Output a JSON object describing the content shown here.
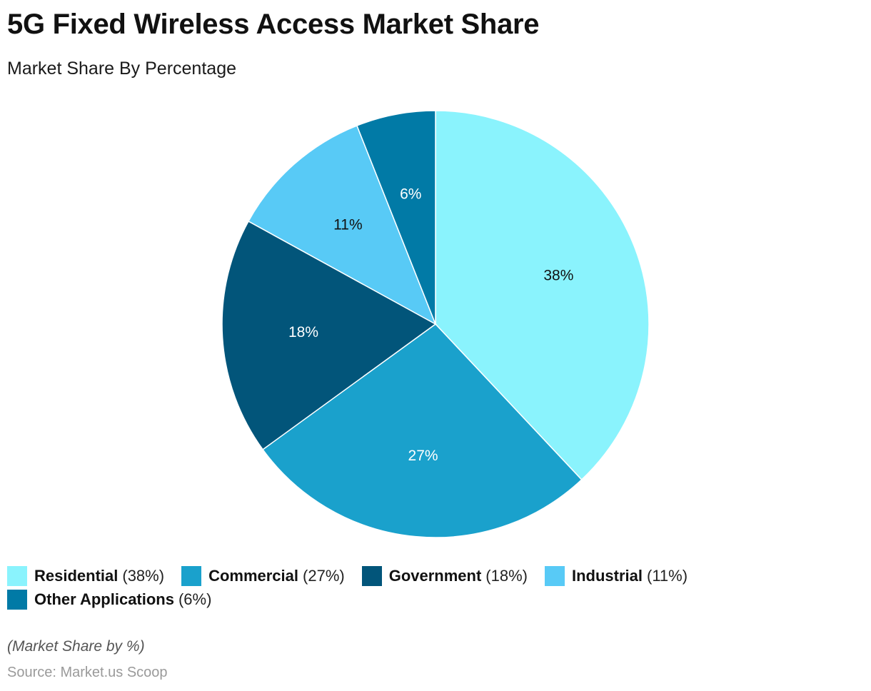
{
  "title": "5G Fixed Wireless Access Market Share",
  "subtitle": "Market Share By Percentage",
  "chart_data": {
    "type": "pie",
    "title": "5G Fixed Wireless Access Market Share",
    "subtitle": "Market Share By Percentage",
    "unit": "%",
    "start": "12 o'clock, clockwise",
    "legend_position": "bottom",
    "slices": [
      {
        "name": "Residential",
        "value": 38,
        "label": "38%",
        "legend_value": "(38%)",
        "color": "#8af3fd",
        "label_color": "#111111"
      },
      {
        "name": "Commercial",
        "value": 27,
        "label": "27%",
        "legend_value": "(27%)",
        "color": "#1aa1cc",
        "label_color": "#ffffff"
      },
      {
        "name": "Government",
        "value": 18,
        "label": "18%",
        "legend_value": "(18%)",
        "color": "#02557a",
        "label_color": "#ffffff"
      },
      {
        "name": "Industrial",
        "value": 11,
        "label": "11%",
        "legend_value": "(11%)",
        "color": "#58caf6",
        "label_color": "#111111"
      },
      {
        "name": "Other Applications",
        "value": 6,
        "label": "6%",
        "legend_value": "(6%)",
        "color": "#017aa6",
        "label_color": "#ffffff"
      }
    ]
  },
  "footer": {
    "note": "(Market Share by %)",
    "source": "Source: Market.us Scoop"
  }
}
